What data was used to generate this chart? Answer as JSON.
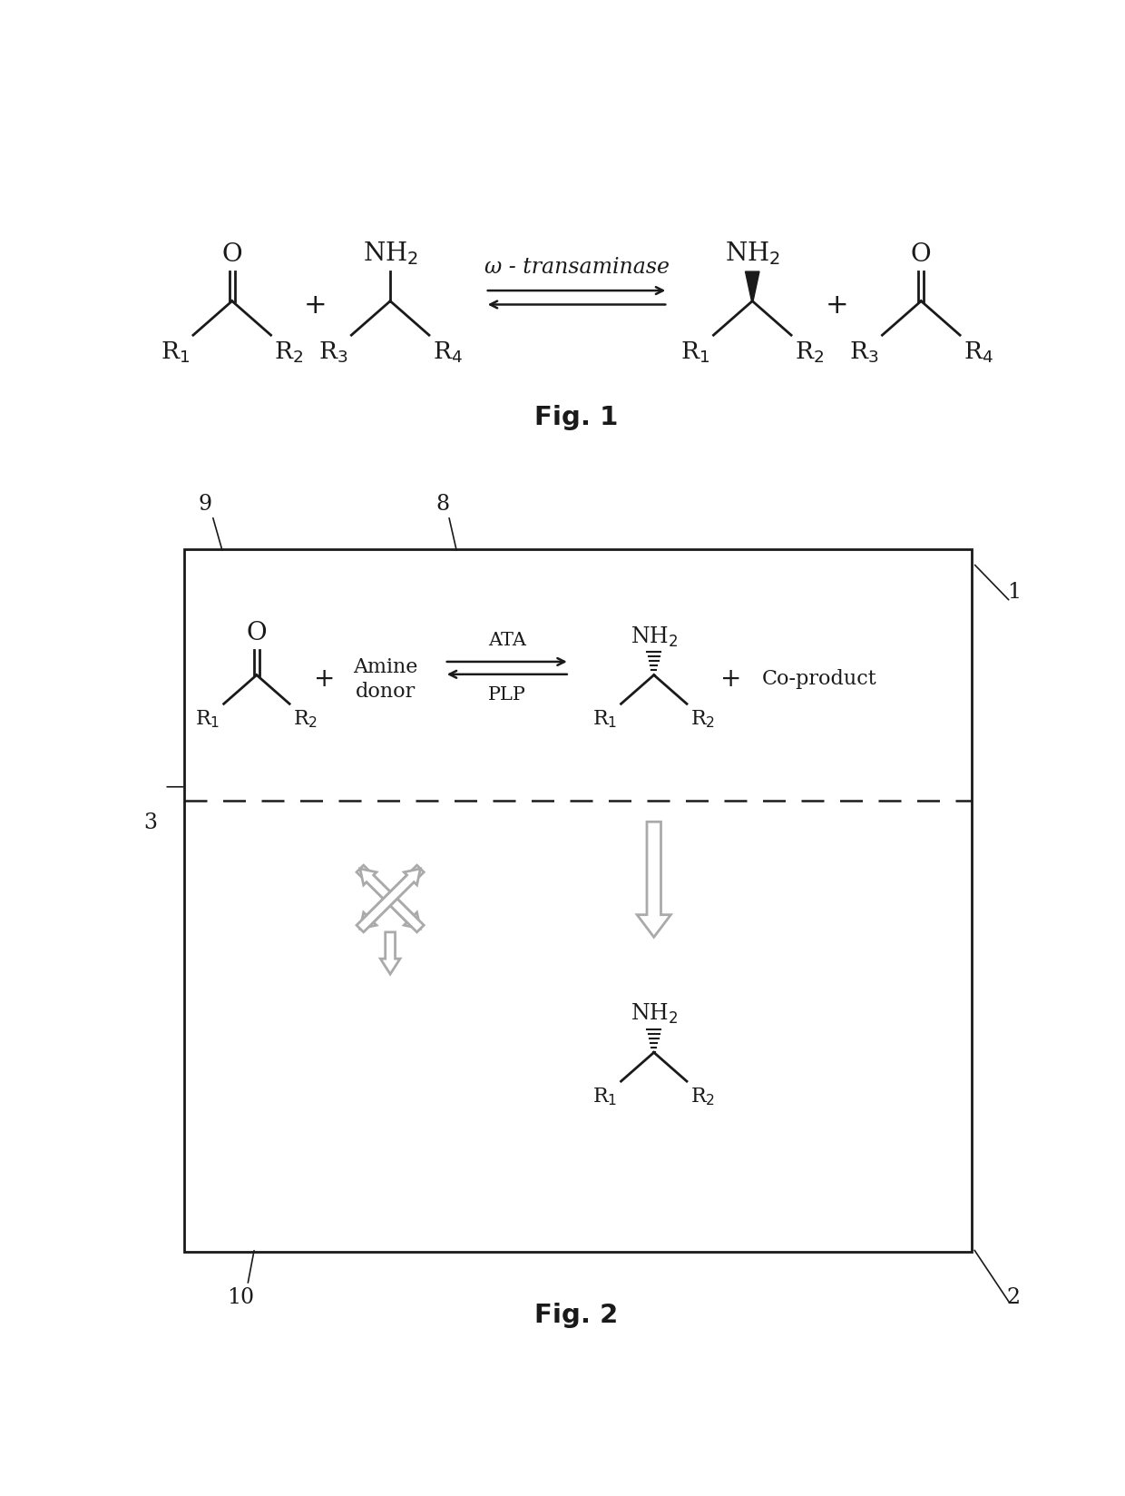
{
  "fig1_label": "Fig. 1",
  "fig2_label": "Fig. 2",
  "omega_transaminase_text": "ω - transaminase",
  "ata_text": "ATA",
  "plp_text": "PLP",
  "amine_donor_text": "Amine\ndonor",
  "co_product_text": "Co-product",
  "label_1": "1",
  "label_2": "2",
  "label_3": "3",
  "label_8": "8",
  "label_9": "9",
  "label_10": "10",
  "bg_color": "#ffffff",
  "line_color": "#1a1a1a",
  "gray_color": "#aaaaaa"
}
